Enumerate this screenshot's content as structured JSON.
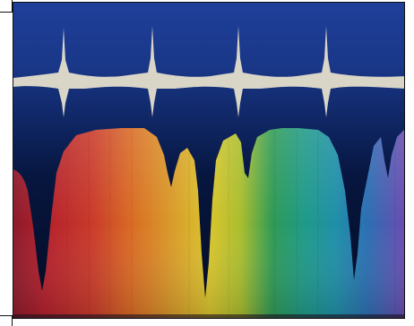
{
  "image": {
    "subject": "visible-light-spectrum-with-absorption-lines",
    "colors": {
      "sky_top": "#1e3f9a",
      "sky_mid": "#142d78",
      "band_dark": "#091c4a",
      "reference_trace": "#d9d6c8",
      "spectrum_red": "#b3202c",
      "spectrum_orange": "#d96b24",
      "spectrum_yellow": "#d9c52c",
      "spectrum_green": "#2f9a55",
      "spectrum_teal": "#1f8fa8",
      "spectrum_blue": "#2b6fb2",
      "spectrum_violet": "#6b4bb0",
      "frame_border": "#111111"
    }
  }
}
